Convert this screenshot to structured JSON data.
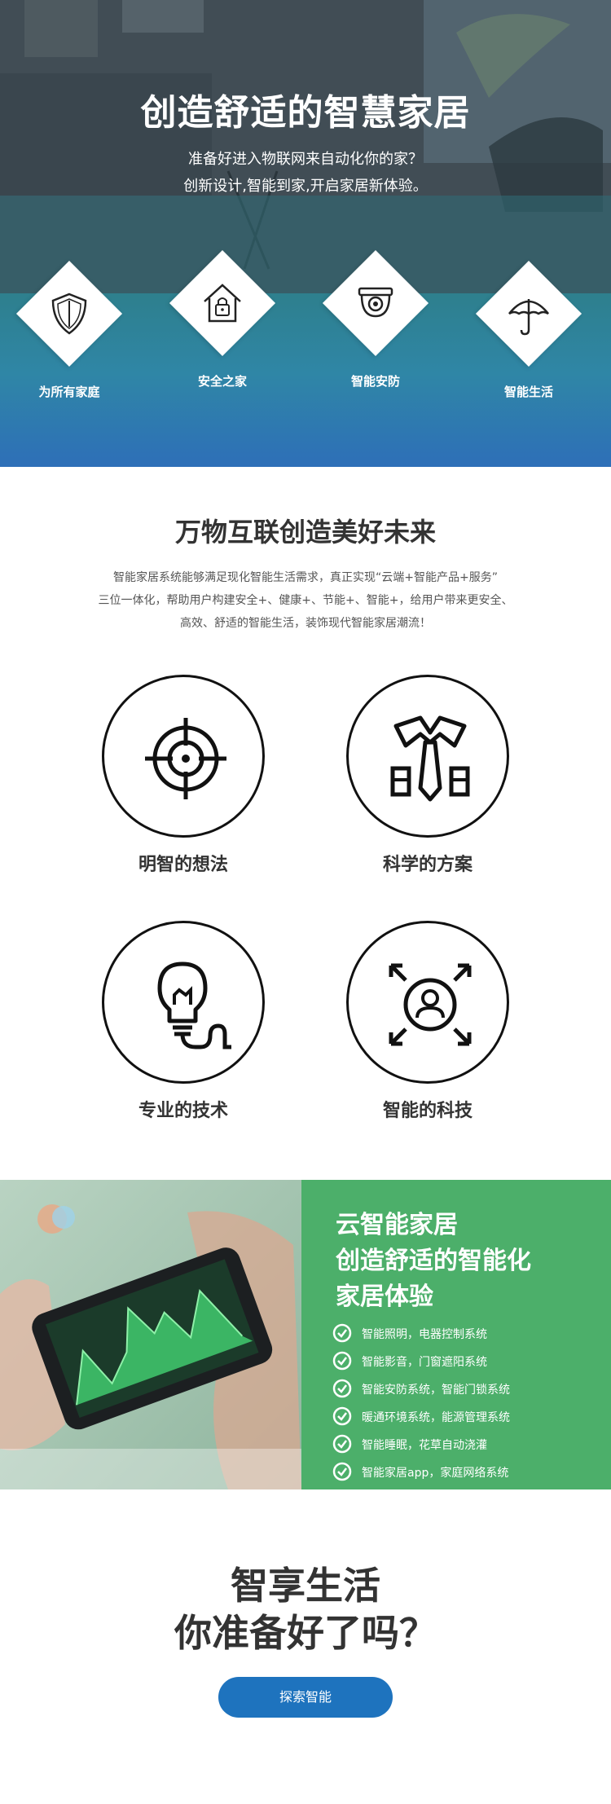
{
  "hero": {
    "title": "创造舒适的智慧家居",
    "subtitle_line1": "准备好进入物联网来自动化你的家？",
    "subtitle_line2": "创新设计,智能到家,开启家居新体验。"
  },
  "features": [
    {
      "label": "为所有家庭",
      "icon": "shield-icon"
    },
    {
      "label": "安全之家",
      "icon": "house-lock-icon"
    },
    {
      "label": "智能安防",
      "icon": "security-camera-icon"
    },
    {
      "label": "智能生活",
      "icon": "umbrella-icon"
    }
  ],
  "intro": {
    "title": "万物互联创造美好未来",
    "p_line1": "智能家居系统能够满足现化智能生活需求，真正实现“云端+智能产品+服务”",
    "p_line2": "三位一体化，帮助用户构建安全+、健康+、节能+、智能+，给用户带来更安全、",
    "p_line3": "高效、舒适的智能生活，装饰现代智能家居潮流！"
  },
  "pillars": [
    {
      "label": "明智的想法",
      "icon": "target-icon"
    },
    {
      "label": "科学的方案",
      "icon": "tie-icon"
    },
    {
      "label": "专业的技术",
      "icon": "lightbulb-icon"
    },
    {
      "label": "智能的科技",
      "icon": "user-expand-icon"
    }
  ],
  "cloud": {
    "title_line1": "云智能家居",
    "title_line2": "创造舒适的智能化",
    "title_line3": "家居体验",
    "items": [
      "智能照明，电器控制系统",
      "智能影音，门窗遮阳系统",
      "智能安防系统，智能门锁系统",
      "暖通环境系统，能源管理系统",
      "智能睡眠，花草自动浇灌",
      "智能家居app，家庭网络系统"
    ]
  },
  "cta": {
    "line1": "智享生活",
    "line2": "你准备好了吗？",
    "button": "探索智能"
  },
  "colors": {
    "accent_blue": "#1e73be",
    "panel_green": "#4caf6a"
  }
}
